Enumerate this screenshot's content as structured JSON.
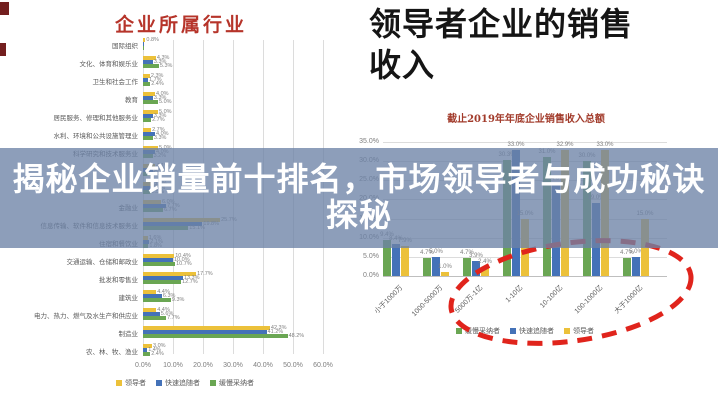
{
  "overlay": {
    "line1": "揭秘企业销量前十排名，市场领导者与成功秘诀",
    "line2": "探秘",
    "band_color": "rgba(109,131,166,0.78)",
    "text_color": "#ffffff"
  },
  "colors": {
    "leader_yellow": "#ecc13a",
    "follower_blue": "#4472b8",
    "adopter_green": "#6aa653",
    "left_title_red": "#b6342a",
    "subtitle_red": "#a23b2b",
    "axis_text": "#7f7f7f",
    "category_text": "#595959",
    "grid_line": "#dcdcdc",
    "axis_line": "#bfbfbf",
    "bar_label": "#7f7f7f",
    "ellipse_red": "#e0241c",
    "edge_artifact": "#731f1f"
  },
  "chart_data": [
    {
      "type": "bar",
      "orientation": "horizontal",
      "title": "企业所属行业",
      "xlabel": "",
      "ylabel": "",
      "xlim": [
        0,
        62
      ],
      "x_ticks": [
        "0.0%",
        "10.0%",
        "20.0%",
        "30.0%",
        "40.0%",
        "50.0%",
        "60.0%"
      ],
      "grid": true,
      "legend_position": "bottom",
      "categories": [
        "国际组织",
        "文化、体育和娱乐业",
        "卫生和社会工作",
        "教育",
        "居民服务、修理和其他服务业",
        "水利、环境和公共设施管理业",
        "科学研究和技术服务业",
        "",
        "",
        "金融业",
        "信息传输、软件和信息技术服务业",
        "住宿和餐饮业",
        "交通运输、仓储和邮政业",
        "批发和零售业",
        "建筑业",
        "电力、热力、燃气及水生产和供应业",
        "制造业",
        "农、林、牧、渔业"
      ],
      "series": [
        {
          "name": "领导者",
          "color_key": "leader_yellow",
          "values": [
            0.8,
            4.3,
            2.3,
            4.0,
            5.0,
            2.7,
            5.0,
            4.1,
            3.4,
            6.0,
            25.7,
            1.6,
            10.4,
            17.7,
            4.4,
            4.4,
            42.3,
            3.0
          ]
        },
        {
          "name": "快速追随者",
          "color_key": "follower_blue",
          "values": [
            0.3,
            3.3,
            1.7,
            3.3,
            3.3,
            4.0,
            4.0,
            3.4,
            2.9,
            7.7,
            19.8,
            2.1,
            10.0,
            13.3,
            6.3,
            5.6,
            41.2,
            1.4
          ]
        },
        {
          "name": "缓慢采纳者",
          "color_key": "adopter_green",
          "values": [
            0.2,
            5.3,
            2.4,
            5.0,
            2.7,
            3.3,
            3.2,
            2.8,
            2.5,
            6.7,
            15.1,
            1.8,
            10.7,
            12.7,
            9.3,
            7.7,
            48.2,
            2.4
          ]
        }
      ]
    },
    {
      "type": "bar",
      "orientation": "vertical",
      "title": "领导者企业的销售收入",
      "subtitle": "截止2019年年底企业销售收入总额",
      "xlabel": "",
      "ylabel": "",
      "ylim": [
        0,
        35
      ],
      "y_ticks": [
        "0.0%",
        "5.0%",
        "10.0%",
        "15.0%",
        "20.0%",
        "25.0%",
        "30.0%",
        "35.0%"
      ],
      "grid": true,
      "legend_position": "bottom",
      "categories": [
        "小于1000万",
        "1000-5000万",
        "5000万-1亿",
        "1-10亿",
        "10-100亿",
        "100-1000亿",
        "大于1000亿"
      ],
      "series": [
        {
          "name": "缓慢采纳者",
          "color_key": "adopter_green",
          "values": [
            9.4,
            4.7,
            4.7,
            30.3,
            31.0,
            30.0,
            4.7
          ]
        },
        {
          "name": "快速追随者",
          "color_key": "follower_blue",
          "values": [
            8.4,
            5.0,
            3.9,
            33.0,
            24.0,
            19.0,
            5.0
          ]
        },
        {
          "name": "领导者",
          "color_key": "leader_yellow",
          "values": [
            7.9,
            1.0,
            2.4,
            15.0,
            32.9,
            33.0,
            15.0
          ]
        }
      ],
      "annotation": {
        "type": "dashed-ellipse",
        "color": "#e0241c",
        "categories_circled": [
          "1-10亿",
          "10-100亿",
          "100-1000亿"
        ]
      }
    }
  ]
}
